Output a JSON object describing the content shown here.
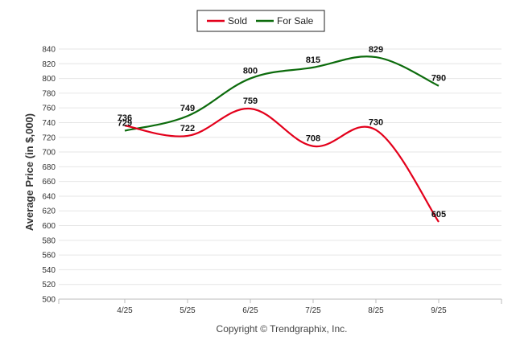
{
  "chart_data": {
    "type": "line",
    "categories": [
      "4/25",
      "5/25",
      "6/25",
      "7/25",
      "8/25",
      "9/25"
    ],
    "series": [
      {
        "name": "Sold",
        "color": "#e3001b",
        "values": [
          736,
          722,
          759,
          708,
          730,
          605
        ]
      },
      {
        "name": "For Sale",
        "color": "#0c6b0c",
        "values": [
          729,
          749,
          800,
          815,
          829,
          790
        ]
      }
    ],
    "ylabel": "Average Price (in $,000)",
    "ylim": [
      500,
      840
    ],
    "ytick_step": 20,
    "grid": true,
    "legend": "top-center",
    "copyright": "Copyright © Trendgraphix, Inc."
  }
}
